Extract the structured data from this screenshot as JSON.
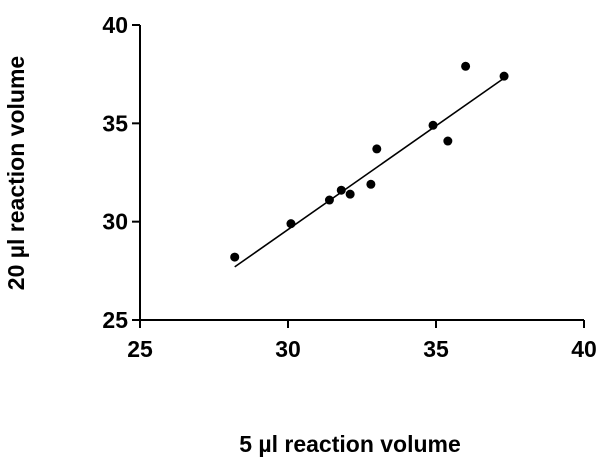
{
  "chart_data": {
    "type": "scatter",
    "xlabel": "5 µl reaction volume",
    "ylabel": "20 µl reaction volume",
    "xlim": [
      25,
      40
    ],
    "ylim": [
      25,
      40
    ],
    "xticks": [
      25,
      30,
      35,
      40
    ],
    "yticks": [
      25,
      30,
      35,
      40
    ],
    "grid": false,
    "points": [
      {
        "x": 28.2,
        "y": 28.2
      },
      {
        "x": 30.1,
        "y": 29.9
      },
      {
        "x": 31.4,
        "y": 31.1
      },
      {
        "x": 31.8,
        "y": 31.6
      },
      {
        "x": 32.1,
        "y": 31.4
      },
      {
        "x": 32.8,
        "y": 31.9
      },
      {
        "x": 33.0,
        "y": 33.7
      },
      {
        "x": 34.9,
        "y": 34.9
      },
      {
        "x": 35.4,
        "y": 34.1
      },
      {
        "x": 36.0,
        "y": 37.9
      },
      {
        "x": 37.3,
        "y": 37.4
      }
    ],
    "fit_line": {
      "x1": 28.2,
      "y1": 27.7,
      "x2": 37.3,
      "y2": 37.3
    }
  }
}
